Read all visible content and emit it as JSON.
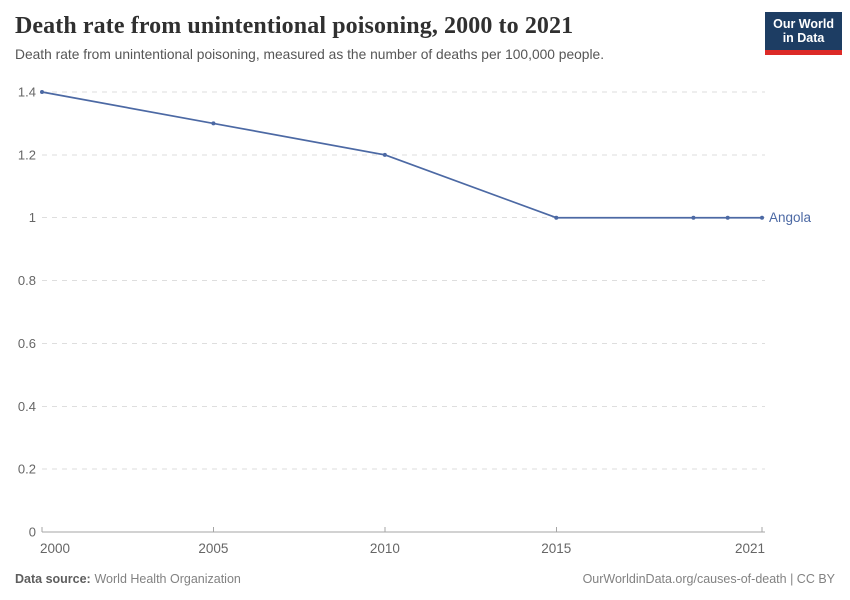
{
  "header": {
    "title": "Death rate from unintentional poisoning, 2000 to 2021",
    "subtitle": "Death rate from unintentional poisoning, measured as the number of deaths per 100,000 people.",
    "logo": {
      "line1": "Our World",
      "line2": "in Data",
      "bg_color": "#1d3d63",
      "accent_color": "#dc2a27"
    }
  },
  "chart_data": {
    "type": "line",
    "title": "Death rate from unintentional poisoning, 2000 to 2021",
    "xlabel": "",
    "ylabel": "",
    "xlim": [
      2000,
      2021
    ],
    "ylim": [
      0,
      1.4
    ],
    "xticks": [
      2000,
      2005,
      2010,
      2015,
      2021
    ],
    "yticks": [
      0,
      0.2,
      0.4,
      0.6,
      0.8,
      1,
      1.2,
      1.4
    ],
    "grid": "horizontal-dashed",
    "legend_position": "end-of-line",
    "series": [
      {
        "name": "Angola",
        "color": "#4c69a4",
        "x": [
          2000,
          2005,
          2010,
          2015,
          2019,
          2020,
          2021
        ],
        "values": [
          1.4,
          1.3,
          1.2,
          1.0,
          1.0,
          1.0,
          1.0
        ]
      }
    ]
  },
  "footer": {
    "source_label": "Data source:",
    "source_value": "World Health Organization",
    "credit": "OurWorldinData.org/causes-of-death | CC BY"
  }
}
